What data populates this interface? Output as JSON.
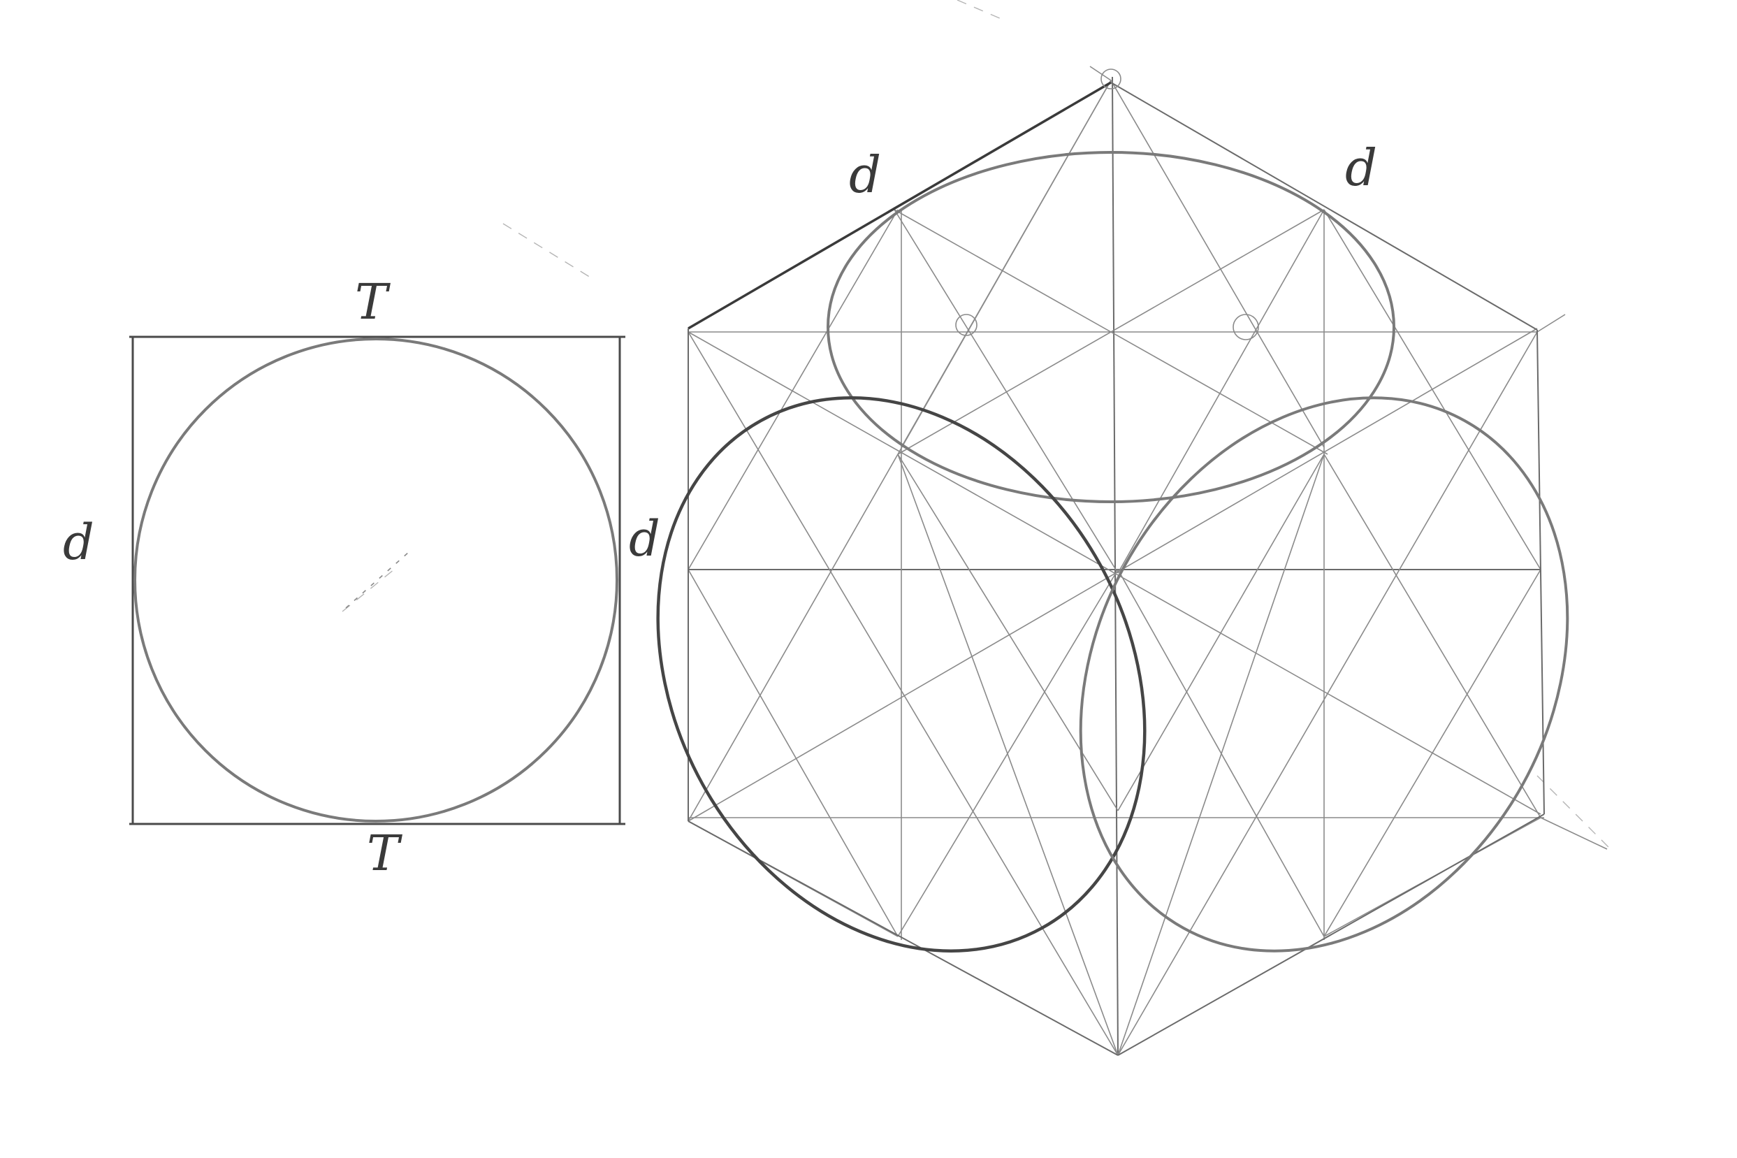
{
  "labels": {
    "square_top": "T",
    "square_bottom": "T",
    "square_left": "d",
    "square_right": "d",
    "cube_top_left": "d",
    "cube_top_right": "d"
  },
  "colors": {
    "paper": "#ffffff",
    "pencil": "#4a4a4a"
  }
}
